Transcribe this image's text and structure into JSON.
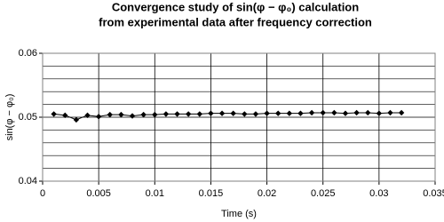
{
  "chart_data": {
    "type": "line",
    "title": [
      "Convergence study of sin(φ − φ₀) calculation",
      "from experimental data after frequency correction"
    ],
    "x_label": "Time (s)",
    "y_label": "sin(φ − φ₀)",
    "x": [
      0.001,
      0.002,
      0.003,
      0.004,
      0.005,
      0.006,
      0.007,
      0.008,
      0.009,
      0.01,
      0.011,
      0.012,
      0.013,
      0.014,
      0.015,
      0.016,
      0.017,
      0.018,
      0.019,
      0.02,
      0.021,
      0.022,
      0.023,
      0.024,
      0.025,
      0.026,
      0.027,
      0.028,
      0.029,
      0.03,
      0.031,
      0.032
    ],
    "series": [
      {
        "name": "sin(φ − φ₀)",
        "color": "#000000",
        "values": [
          0.0505,
          0.0503,
          0.0496,
          0.0503,
          0.0501,
          0.0504,
          0.0504,
          0.0502,
          0.0504,
          0.0504,
          0.0505,
          0.0505,
          0.0505,
          0.0505,
          0.0506,
          0.0506,
          0.0506,
          0.0505,
          0.0505,
          0.0506,
          0.0506,
          0.0506,
          0.0506,
          0.0507,
          0.0507,
          0.0507,
          0.0506,
          0.0507,
          0.0507,
          0.0506,
          0.0507,
          0.0507
        ]
      }
    ],
    "xlim": [
      0,
      0.035
    ],
    "xticks": [
      0,
      0.005,
      0.01,
      0.015,
      0.02,
      0.025,
      0.03,
      0.035
    ],
    "ylim": [
      0.04,
      0.06
    ],
    "yticks": [
      0.04,
      0.05,
      0.06
    ],
    "y_minor_ticks": [
      0.042,
      0.044,
      0.046,
      0.048,
      0.052,
      0.054,
      0.056,
      0.058
    ],
    "grid": true,
    "marker": "diamond"
  }
}
